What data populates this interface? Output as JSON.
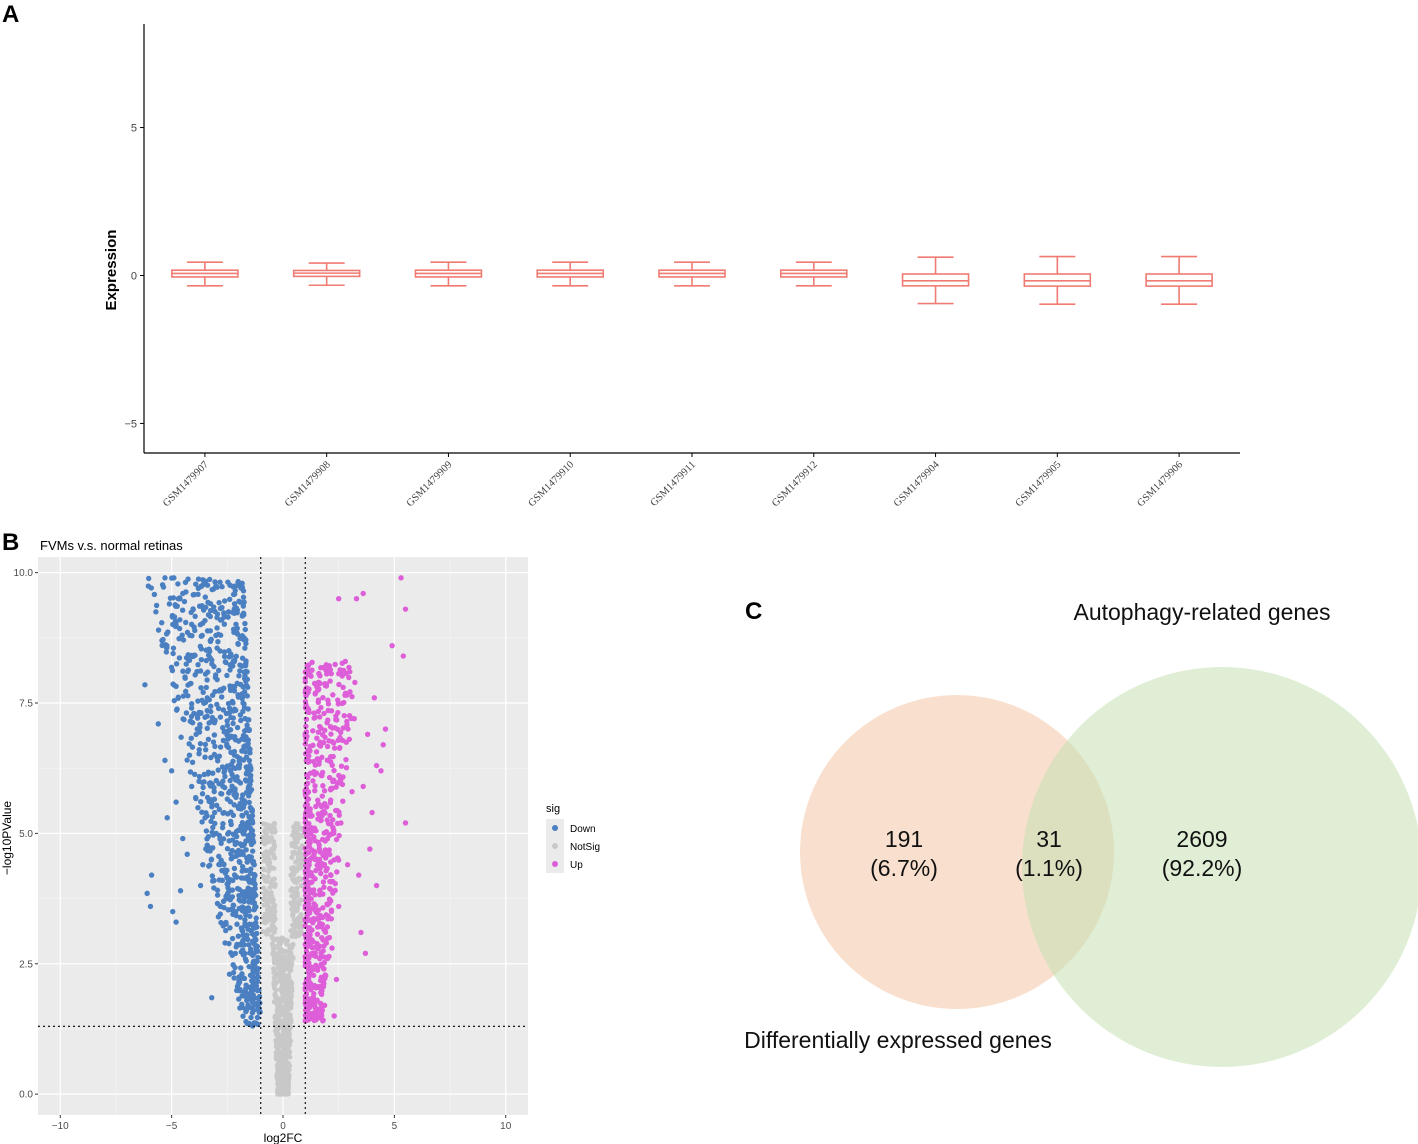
{
  "panels": {
    "a": "A",
    "b": "B",
    "c": "C"
  },
  "chart_data": [
    {
      "type": "box",
      "panel": "A",
      "ylabel": "Expression",
      "ylim": [
        -6,
        8.5
      ],
      "yticks": [
        -5,
        0,
        5
      ],
      "ytick_labels": [
        "−5",
        "0",
        "5"
      ],
      "color": "#f07b72",
      "categories": [
        "GSM1479907",
        "GSM1479908",
        "GSM1479909",
        "GSM1479910",
        "GSM1479911",
        "GSM1479912",
        "GSM1479904",
        "GSM1479905",
        "GSM1479906"
      ],
      "boxes": [
        {
          "min": -0.35,
          "q1": -0.05,
          "median": 0.07,
          "q3": 0.18,
          "max": 0.45
        },
        {
          "min": -0.33,
          "q1": -0.03,
          "median": 0.08,
          "q3": 0.17,
          "max": 0.42
        },
        {
          "min": -0.35,
          "q1": -0.05,
          "median": 0.07,
          "q3": 0.18,
          "max": 0.45
        },
        {
          "min": -0.35,
          "q1": -0.05,
          "median": 0.07,
          "q3": 0.18,
          "max": 0.45
        },
        {
          "min": -0.35,
          "q1": -0.05,
          "median": 0.07,
          "q3": 0.18,
          "max": 0.45
        },
        {
          "min": -0.35,
          "q1": -0.05,
          "median": 0.07,
          "q3": 0.18,
          "max": 0.45
        },
        {
          "min": -0.95,
          "q1": -0.35,
          "median": -0.18,
          "q3": 0.05,
          "max": 0.62
        },
        {
          "min": -0.97,
          "q1": -0.36,
          "median": -0.18,
          "q3": 0.05,
          "max": 0.64
        },
        {
          "min": -0.97,
          "q1": -0.36,
          "median": -0.18,
          "q3": 0.05,
          "max": 0.64
        }
      ]
    },
    {
      "type": "scatter",
      "panel": "B",
      "title": "FVMs v.s. normal retinas",
      "xlabel": "log2FC",
      "ylabel": "−log10PValue",
      "xlim": [
        -11,
        11
      ],
      "ylim": [
        -0.4,
        10.3
      ],
      "xticks": [
        -10,
        -5,
        0,
        5,
        10
      ],
      "xtick_labels": [
        "−10",
        "−5",
        "0",
        "5",
        "10"
      ],
      "yticks": [
        0,
        2.5,
        5,
        7.5,
        10
      ],
      "ytick_labels": [
        "0.0",
        "2.5",
        "5.0",
        "7.5",
        "10.0"
      ],
      "vlines": [
        -1,
        1
      ],
      "hline": 1.3,
      "legend": {
        "title": "sig",
        "items": [
          {
            "label": "Down",
            "color": "#4a7fc1"
          },
          {
            "label": "NotSig",
            "color": "#c8c8c8"
          },
          {
            "label": "Up",
            "color": "#dd5ed8"
          }
        ]
      },
      "colors": {
        "down": "#4a7fc1",
        "notsig": "#c8c8c8",
        "up": "#dd5ed8",
        "panel_bg": "#ebebeb"
      },
      "points": {
        "down": [
          [
            -5.3,
            9.9
          ],
          [
            -4.9,
            9.9
          ],
          [
            -4.5,
            9.6
          ],
          [
            -4.7,
            9.5
          ],
          [
            -5.1,
            9.4
          ],
          [
            -3.8,
            9.7
          ],
          [
            -6.2,
            7.85
          ],
          [
            -5.6,
            7.1
          ],
          [
            -5.9,
            4.2
          ],
          [
            -6.1,
            3.85
          ],
          [
            -5.95,
            3.6
          ],
          [
            -4.95,
            3.5
          ],
          [
            -4.6,
            3.9
          ],
          [
            -3.2,
            1.85
          ],
          [
            -4.2,
            6.5
          ],
          [
            -5.0,
            6.2
          ],
          [
            -4.8,
            5.6
          ],
          [
            -3.9,
            6.9
          ],
          [
            -3.5,
            5.3
          ],
          [
            -3.3,
            4.7
          ],
          [
            -3.7,
            4.0
          ],
          [
            -2.9,
            3.4
          ],
          [
            -2.6,
            2.9
          ],
          [
            -2.4,
            2.3
          ],
          [
            -5.2,
            5.3
          ],
          [
            -4.3,
            4.6
          ],
          [
            -3.1,
            8.2
          ],
          [
            -2.8,
            8.8
          ],
          [
            -3.4,
            7.6
          ],
          [
            -4.0,
            7.3
          ],
          [
            -4.4,
            8.0
          ],
          [
            -2.7,
            6.0
          ],
          [
            -3.0,
            5.0
          ],
          [
            -4.1,
            5.9
          ],
          [
            -3.6,
            4.4
          ],
          [
            -4.5,
            4.9
          ],
          [
            -5.3,
            6.4
          ],
          [
            -4.8,
            3.3
          ]
        ],
        "up": [
          [
            5.3,
            9.9
          ],
          [
            5.5,
            9.3
          ],
          [
            5.4,
            8.4
          ],
          [
            5.5,
            5.2
          ],
          [
            3.6,
            9.6
          ],
          [
            2.5,
            9.5
          ],
          [
            3.3,
            9.5
          ],
          [
            4.9,
            8.6
          ],
          [
            4.6,
            7.0
          ],
          [
            4.5,
            6.7
          ],
          [
            4.2,
            6.3
          ],
          [
            4.0,
            5.4
          ],
          [
            3.9,
            4.7
          ],
          [
            4.2,
            4.0
          ],
          [
            3.5,
            3.1
          ],
          [
            3.7,
            2.7
          ],
          [
            2.3,
            1.5
          ],
          [
            1.3,
            1.5
          ],
          [
            3.0,
            8.1
          ],
          [
            2.7,
            7.8
          ],
          [
            3.2,
            7.2
          ],
          [
            3.8,
            6.9
          ],
          [
            3.1,
            5.8
          ],
          [
            2.6,
            5.2
          ],
          [
            2.9,
            4.4
          ],
          [
            2.5,
            3.6
          ],
          [
            2.2,
            2.8
          ],
          [
            2.4,
            2.2
          ],
          [
            3.4,
            4.2
          ],
          [
            3.6,
            5.9
          ],
          [
            4.1,
            7.6
          ],
          [
            4.4,
            6.2
          ]
        ]
      }
    },
    {
      "type": "venn",
      "panel": "C",
      "sets": [
        {
          "label": "Differentially expressed genes",
          "color": "#f4c7a6"
        },
        {
          "label": "Autophagy-related genes",
          "color": "#c5e0b3"
        }
      ],
      "regions": [
        {
          "name": "Differentially expressed genes only",
          "count": 191,
          "percent": 6.7,
          "count_label": "191",
          "percent_label": "(6.7%)"
        },
        {
          "name": "Intersection",
          "count": 31,
          "percent": 1.1,
          "count_label": "31",
          "percent_label": "(1.1%)"
        },
        {
          "name": "Autophagy-related genes only",
          "count": 2609,
          "percent": 92.2,
          "count_label": "2609",
          "percent_label": "(92.2%)"
        }
      ]
    }
  ]
}
